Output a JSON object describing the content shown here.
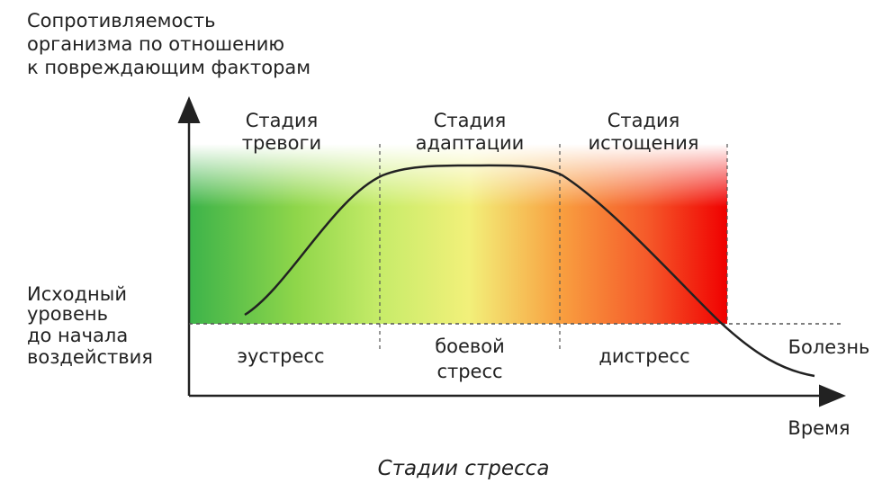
{
  "y_axis_label": [
    "Сопротивляемость",
    "организма по отношению",
    "к повреждающим факторам"
  ],
  "baseline_label": [
    "Исходный",
    "уровень",
    "до начала",
    "воздействия"
  ],
  "stages": [
    [
      "Стадия",
      "тревоги"
    ],
    [
      "Стадия",
      "адаптации"
    ],
    [
      "Стадия",
      "истощения"
    ]
  ],
  "zones": [
    [
      "эустресс"
    ],
    [
      "боевой",
      "стресс"
    ],
    [
      "дистресс"
    ]
  ],
  "disease_label": "Болезнь",
  "x_axis_label": "Время",
  "caption": "Стадии стресса"
}
